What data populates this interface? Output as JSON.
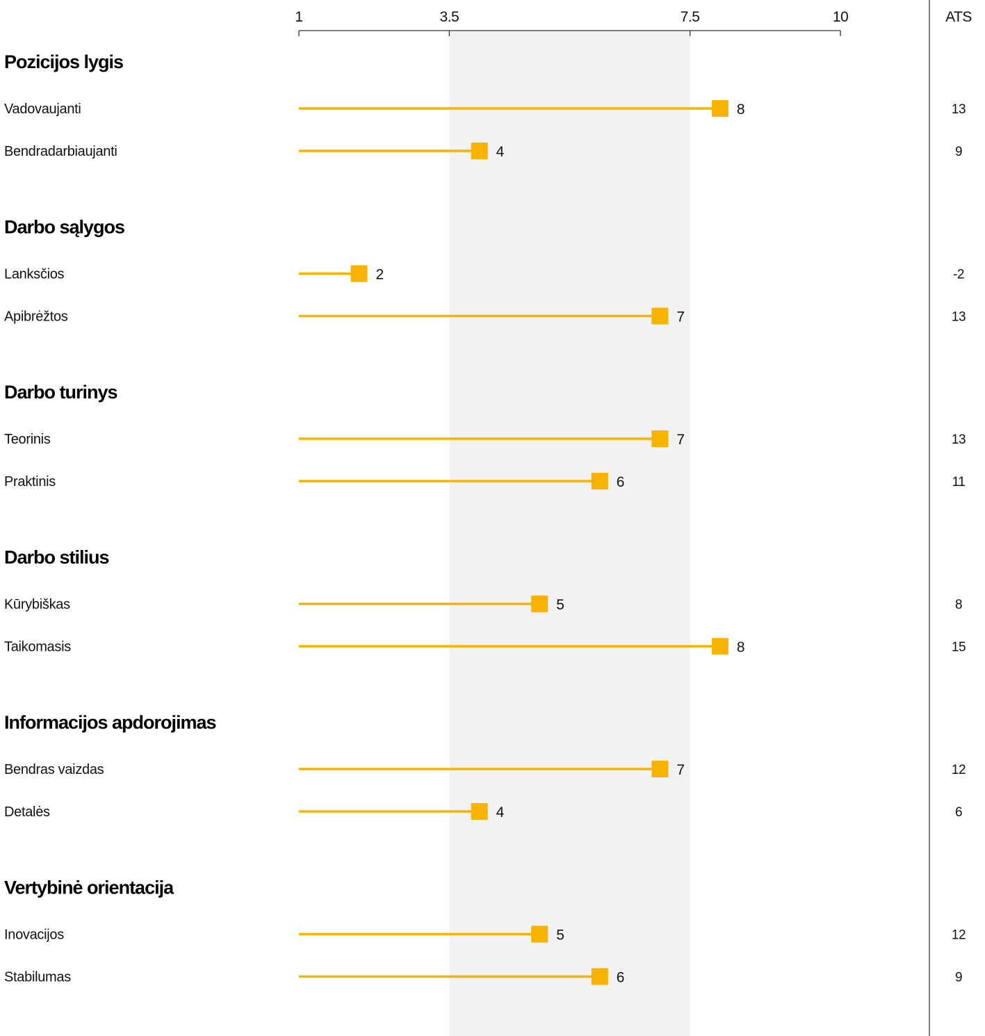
{
  "colors": {
    "accent": "#f8b200",
    "band": "#f2f2f2",
    "axis": "#333333"
  },
  "ats_header": "ATS",
  "chart_data": {
    "type": "dot-plot",
    "xlim": [
      1,
      10
    ],
    "ticks": [
      1,
      3.5,
      7.5,
      10
    ],
    "tick_labels": [
      "1",
      "3.5",
      "7.5",
      "10"
    ],
    "highlight_band": [
      3.5,
      7.5
    ],
    "ats_column_label": "ATS",
    "groups": [
      {
        "title": "Pozicijos lygis",
        "items": [
          {
            "label": "Vadovaujanti",
            "value": 8,
            "ats": "13"
          },
          {
            "label": "Bendradarbiaujanti",
            "value": 4,
            "ats": "9"
          }
        ]
      },
      {
        "title": "Darbo sąlygos",
        "items": [
          {
            "label": "Lanksčios",
            "value": 2,
            "ats": "-2"
          },
          {
            "label": "Apibrėžtos",
            "value": 7,
            "ats": "13"
          }
        ]
      },
      {
        "title": "Darbo turinys",
        "items": [
          {
            "label": "Teorinis",
            "value": 7,
            "ats": "13"
          },
          {
            "label": "Praktinis",
            "value": 6,
            "ats": "11"
          }
        ]
      },
      {
        "title": "Darbo stilius",
        "items": [
          {
            "label": "Kūrybiškas",
            "value": 5,
            "ats": "8"
          },
          {
            "label": "Taikomasis",
            "value": 8,
            "ats": "15"
          }
        ]
      },
      {
        "title": "Informacijos apdorojimas",
        "items": [
          {
            "label": "Bendras vaizdas",
            "value": 7,
            "ats": "12"
          },
          {
            "label": "Detalės",
            "value": 4,
            "ats": "6"
          }
        ]
      },
      {
        "title": "Vertybinė orientacija",
        "items": [
          {
            "label": "Inovacijos",
            "value": 5,
            "ats": "12"
          },
          {
            "label": "Stabilumas",
            "value": 6,
            "ats": "9"
          }
        ]
      }
    ]
  }
}
